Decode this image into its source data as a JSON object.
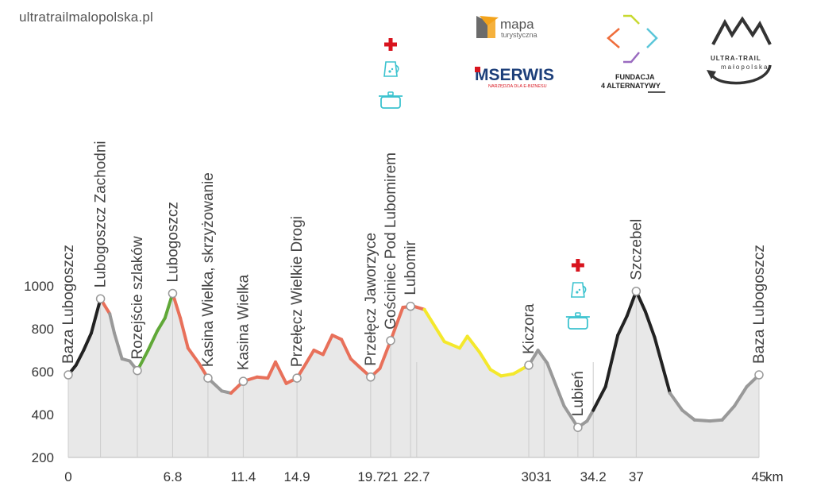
{
  "site_url": "ultratrailmalopolska.pl",
  "logos": {
    "mapa": {
      "line1": "mapa",
      "line2": "turystyczna"
    },
    "mserwis": {
      "name": "MSERWIS",
      "tagline": "NARZĘDZIA DLA E-BIZNESU"
    },
    "fundacja": {
      "line1": "FUNDACJA",
      "line2": "4 ALTERNATYWY"
    },
    "utm": {
      "line1": "ULTRA-TRAIL",
      "line2": "małopolska"
    }
  },
  "chart_data": {
    "type": "area",
    "title": "",
    "xlabel": "",
    "ylabel": "",
    "x_unit": "km",
    "xlim": [
      0,
      45
    ],
    "ylim": [
      200,
      1000
    ],
    "y_ticks": [
      200,
      400,
      600,
      800,
      1000
    ],
    "x_ticks": [
      {
        "value": 0,
        "label": "0"
      },
      {
        "value": 6.8,
        "label": "6.8"
      },
      {
        "value": 11.4,
        "label": "11.4"
      },
      {
        "value": 14.9,
        "label": "14.9"
      },
      {
        "value": 19.7,
        "label": "19.7"
      },
      {
        "value": 21,
        "label": "21"
      },
      {
        "value": 22.7,
        "label": "22.7"
      },
      {
        "value": 30,
        "label": "30"
      },
      {
        "value": 31,
        "label": "31"
      },
      {
        "value": 34.2,
        "label": "34.2"
      },
      {
        "value": 37,
        "label": "37"
      },
      {
        "value": 45,
        "label": "45"
      }
    ],
    "profile": [
      {
        "x": 0,
        "y": 585,
        "c": "#222222"
      },
      {
        "x": 0.5,
        "y": 630,
        "c": "#222222"
      },
      {
        "x": 1.0,
        "y": 700,
        "c": "#222222"
      },
      {
        "x": 1.5,
        "y": 780,
        "c": "#222222"
      },
      {
        "x": 2.1,
        "y": 940,
        "c": "#e8705a"
      },
      {
        "x": 2.7,
        "y": 870,
        "c": "#999999"
      },
      {
        "x": 3.0,
        "y": 780,
        "c": "#999999"
      },
      {
        "x": 3.5,
        "y": 660,
        "c": "#999999"
      },
      {
        "x": 4.0,
        "y": 650,
        "c": "#999999"
      },
      {
        "x": 4.5,
        "y": 605,
        "c": "#60a838"
      },
      {
        "x": 5.2,
        "y": 700,
        "c": "#60a838"
      },
      {
        "x": 5.8,
        "y": 790,
        "c": "#60a838"
      },
      {
        "x": 6.3,
        "y": 850,
        "c": "#60a838"
      },
      {
        "x": 6.8,
        "y": 965,
        "c": "#e8705a"
      },
      {
        "x": 7.3,
        "y": 850,
        "c": "#e8705a"
      },
      {
        "x": 7.8,
        "y": 710,
        "c": "#e8705a"
      },
      {
        "x": 8.5,
        "y": 640,
        "c": "#e8705a"
      },
      {
        "x": 9.1,
        "y": 570,
        "c": "#999999"
      },
      {
        "x": 10.0,
        "y": 510,
        "c": "#999999"
      },
      {
        "x": 10.6,
        "y": 500,
        "c": "#e8705a"
      },
      {
        "x": 11.4,
        "y": 555,
        "c": "#e8705a"
      },
      {
        "x": 12.3,
        "y": 575,
        "c": "#e8705a"
      },
      {
        "x": 13.0,
        "y": 570,
        "c": "#e8705a"
      },
      {
        "x": 13.5,
        "y": 645,
        "c": "#e8705a"
      },
      {
        "x": 14.2,
        "y": 545,
        "c": "#e8705a"
      },
      {
        "x": 14.9,
        "y": 570,
        "c": "#e8705a"
      },
      {
        "x": 15.5,
        "y": 640,
        "c": "#e8705a"
      },
      {
        "x": 16.0,
        "y": 700,
        "c": "#e8705a"
      },
      {
        "x": 16.6,
        "y": 680,
        "c": "#e8705a"
      },
      {
        "x": 17.2,
        "y": 770,
        "c": "#e8705a"
      },
      {
        "x": 17.8,
        "y": 750,
        "c": "#e8705a"
      },
      {
        "x": 18.4,
        "y": 660,
        "c": "#e8705a"
      },
      {
        "x": 19.0,
        "y": 620,
        "c": "#e8705a"
      },
      {
        "x": 19.7,
        "y": 575,
        "c": "#e8705a"
      },
      {
        "x": 20.3,
        "y": 615,
        "c": "#e8705a"
      },
      {
        "x": 21.0,
        "y": 745,
        "c": "#e8705a"
      },
      {
        "x": 21.8,
        "y": 900,
        "c": "#e8705a"
      },
      {
        "x": 22.5,
        "y": 905,
        "c": "#e8705a"
      },
      {
        "x": 23.2,
        "y": 890,
        "c": "#f4e82c"
      },
      {
        "x": 24.5,
        "y": 740,
        "c": "#f4e82c"
      },
      {
        "x": 25.5,
        "y": 710,
        "c": "#f4e82c"
      },
      {
        "x": 26.0,
        "y": 765,
        "c": "#f4e82c"
      },
      {
        "x": 26.8,
        "y": 690,
        "c": "#f4e82c"
      },
      {
        "x": 27.5,
        "y": 610,
        "c": "#f4e82c"
      },
      {
        "x": 28.2,
        "y": 580,
        "c": "#f4e82c"
      },
      {
        "x": 29.0,
        "y": 590,
        "c": "#f4e82c"
      },
      {
        "x": 30.0,
        "y": 630,
        "c": "#999999"
      },
      {
        "x": 30.6,
        "y": 700,
        "c": "#999999"
      },
      {
        "x": 31.2,
        "y": 640,
        "c": "#999999"
      },
      {
        "x": 32.3,
        "y": 440,
        "c": "#999999"
      },
      {
        "x": 33.2,
        "y": 340,
        "c": "#999999"
      },
      {
        "x": 33.8,
        "y": 370,
        "c": "#999999"
      },
      {
        "x": 34.2,
        "y": 420,
        "c": "#222222"
      },
      {
        "x": 35.0,
        "y": 530,
        "c": "#222222"
      },
      {
        "x": 35.8,
        "y": 770,
        "c": "#222222"
      },
      {
        "x": 36.4,
        "y": 860,
        "c": "#222222"
      },
      {
        "x": 37.0,
        "y": 975,
        "c": "#222222"
      },
      {
        "x": 37.6,
        "y": 880,
        "c": "#222222"
      },
      {
        "x": 38.2,
        "y": 760,
        "c": "#222222"
      },
      {
        "x": 39.2,
        "y": 500,
        "c": "#999999"
      },
      {
        "x": 40.0,
        "y": 420,
        "c": "#999999"
      },
      {
        "x": 40.8,
        "y": 375,
        "c": "#999999"
      },
      {
        "x": 41.8,
        "y": 370,
        "c": "#999999"
      },
      {
        "x": 42.6,
        "y": 375,
        "c": "#999999"
      },
      {
        "x": 43.4,
        "y": 440,
        "c": "#999999"
      },
      {
        "x": 44.2,
        "y": 530,
        "c": "#999999"
      },
      {
        "x": 45.0,
        "y": 585,
        "c": "#999999"
      }
    ],
    "waypoints": [
      {
        "name": "Baza Lubogoszcz",
        "x": 0,
        "y": 585
      },
      {
        "name": "Lubogoszcz Zachodni",
        "x": 2.1,
        "y": 940
      },
      {
        "name": "Rozejście szlaków",
        "x": 4.5,
        "y": 605
      },
      {
        "name": "Lubogoszcz",
        "x": 6.8,
        "y": 965
      },
      {
        "name": "Kasina Wielka, skrzyżowanie",
        "x": 9.1,
        "y": 570
      },
      {
        "name": "Kasina Wielka",
        "x": 11.4,
        "y": 555
      },
      {
        "name": "Przełęcz Wielkie Drogi",
        "x": 14.9,
        "y": 570
      },
      {
        "name": "Przełęcz Jaworzyce",
        "x": 19.7,
        "y": 575
      },
      {
        "name": "Gościniec Pod Lubomirem",
        "x": 21.0,
        "y": 745
      },
      {
        "name": "Lubomir",
        "x": 22.3,
        "y": 905
      },
      {
        "name": "Kiczora",
        "x": 30.0,
        "y": 630
      },
      {
        "name": "Lubień",
        "x": 33.2,
        "y": 340
      },
      {
        "name": "Szczebel",
        "x": 37.0,
        "y": 975
      },
      {
        "name": "Baza Lubogoszcz",
        "x": 45.0,
        "y": 585
      }
    ],
    "aid_stations": [
      {
        "x": 21.0,
        "icons": [
          "medical-cross-icon",
          "water-jug-icon",
          "cooking-pot-icon"
        ]
      },
      {
        "x": 33.2,
        "icons": [
          "medical-cross-icon",
          "water-jug-icon",
          "cooking-pot-icon"
        ]
      }
    ],
    "colors": {
      "fill": "#e8e8e8",
      "grid": "#cccccc",
      "cross": "#d8141e",
      "icon": "#3cc3cf"
    }
  }
}
